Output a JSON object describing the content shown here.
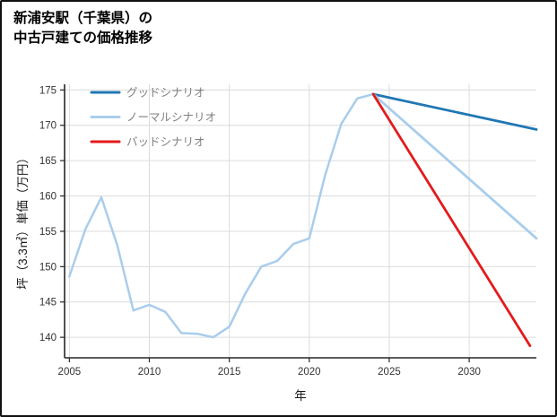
{
  "title": {
    "line1": "新浦安駅（千葉県）の",
    "line2": "中古戸建ての価格推移"
  },
  "chart_data": {
    "type": "line",
    "title": "新浦安駅（千葉県）の中古戸建ての価格推移",
    "xlabel": "年",
    "ylabel": "坪（3.3㎡）単価（万円）",
    "xlim": [
      2004.7,
      2034.2
    ],
    "ylim": [
      137.1,
      175.8
    ],
    "xticks": [
      2005,
      2010,
      2015,
      2020,
      2025,
      2030
    ],
    "yticks": [
      140,
      145,
      150,
      155,
      160,
      165,
      170,
      175
    ],
    "grid": true,
    "grid_color": "#dcdcdc",
    "axis_color": "#262626",
    "tick_label_color": "#333333",
    "legend_text_color": "#7f7f7f",
    "legend_position": "upper-left-inside",
    "series": [
      {
        "id": "history",
        "color": "#a9cdec",
        "width": 2.5,
        "legend": false,
        "x": [
          2005,
          2006,
          2007,
          2008,
          2009,
          2010,
          2011,
          2012,
          2013,
          2014,
          2015,
          2016,
          2017,
          2018,
          2019,
          2020,
          2021,
          2022,
          2023,
          2024
        ],
        "y": [
          148.6,
          155.3,
          159.8,
          153.0,
          143.8,
          144.6,
          143.6,
          140.6,
          140.5,
          140.0,
          141.5,
          146.2,
          150.0,
          150.8,
          153.2,
          154.0,
          163.0,
          170.2,
          173.8,
          174.4
        ]
      },
      {
        "id": "good-scenario",
        "name": "グッドシナリオ",
        "color": "#1f77b4",
        "width": 2.8,
        "legend": true,
        "x": [
          2024,
          2034.2
        ],
        "y": [
          174.4,
          169.4
        ]
      },
      {
        "id": "normal-scenario",
        "name": "ノーマルシナリオ",
        "color": "#a9cdec",
        "width": 2.8,
        "legend": true,
        "x": [
          2024,
          2034.2
        ],
        "y": [
          174.4,
          154.0
        ]
      },
      {
        "id": "bad-scenario",
        "name": "バッドシナリオ",
        "color": "#e31a1c",
        "width": 2.8,
        "legend": true,
        "x": [
          2024,
          2033.8
        ],
        "y": [
          174.4,
          138.8
        ]
      }
    ]
  }
}
